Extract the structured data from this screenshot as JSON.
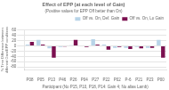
{
  "chart_data": {
    "type": "bar",
    "title": "Effect of EPP (at each level of Gain)",
    "subtitle": "(Positive values for EPP Off better than On)",
    "xlabel": "Participant (No P15, P10, P18, P14: Gain 4; No alias Lamb)",
    "ylabel": "% Time Difference between\ndifferent Gain/EPP conditions",
    "categories": [
      "P08",
      "P05",
      "P13",
      "P46",
      "P26",
      "P04",
      "P27",
      "P22",
      "P02",
      "P-6",
      "P21",
      "P23",
      "P00"
    ],
    "series": [
      {
        "name": "Off vs. On, Def. Gain",
        "color": "#b8d4e8",
        "values": [
          5,
          22,
          -10,
          -5,
          2,
          -2,
          25,
          5,
          -8,
          -8,
          -5,
          -8,
          22
        ]
      },
      {
        "name": "Off vs. On, Lo Gain",
        "color": "#7b1050",
        "values": [
          15,
          5,
          -45,
          -3,
          22,
          -5,
          5,
          -15,
          -5,
          -12,
          -10,
          -8,
          -45
        ]
      }
    ],
    "ylim": [
      -90,
      60
    ],
    "yticks": [
      -80,
      -60,
      -40,
      -20,
      0,
      20,
      40,
      60
    ],
    "grid": "y",
    "legend": "upper right"
  }
}
